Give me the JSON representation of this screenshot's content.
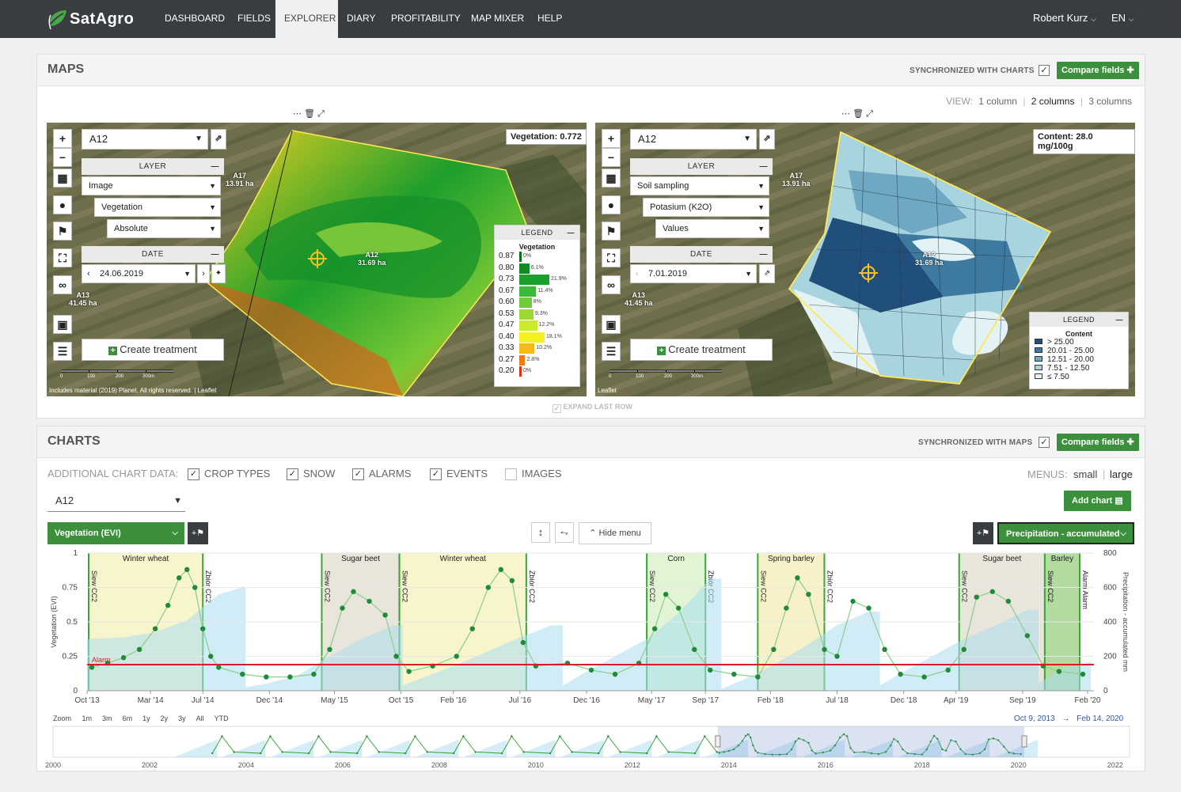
{
  "nav": {
    "brand": "SatAgro",
    "items": [
      {
        "label": "DASHBOARD",
        "active": false
      },
      {
        "label": "FIELDS",
        "active": false
      },
      {
        "label": "EXPLORER",
        "active": true
      },
      {
        "label": "DIARY",
        "active": false
      },
      {
        "label": "PROFITABILITY",
        "active": false
      },
      {
        "label": "MAP MIXER",
        "active": false
      },
      {
        "label": "HELP",
        "active": false
      }
    ],
    "user": "Robert Kurz",
    "language": "EN"
  },
  "maps": {
    "title": "MAPS",
    "sync_label": "SYNCHRONIZED WITH CHARTS",
    "compare_label": "Compare fields",
    "view_label": "VIEW:",
    "view_options": [
      "1 column",
      "2 columns",
      "3 columns"
    ],
    "view_selected": "2 columns",
    "expand_label": "EXPAND LAST ROW",
    "left": {
      "field": "A12",
      "layer_head": "LAYER",
      "layer": "Image",
      "sublayer": "Vegetation",
      "mode": "Absolute",
      "date_head": "DATE",
      "date": "24.06.2019",
      "create": "Create treatment",
      "value_box": "Vegetation: 0.772",
      "labels": [
        {
          "name": "A17",
          "area": "13.91 ha"
        },
        {
          "name": "A12",
          "area": "31.69 ha"
        },
        {
          "name": "A13",
          "area": "41.45 ha"
        }
      ],
      "legend_head": "LEGEND",
      "legend_title": "Vegetation",
      "legend_rows": [
        {
          "value": "0.87",
          "pct": "0%",
          "share": 0,
          "color": "#0a6e1c"
        },
        {
          "value": "0.80",
          "pct": "6.1%",
          "share": 6.1,
          "color": "#118a24"
        },
        {
          "value": "0.73",
          "pct": "21.9%",
          "share": 21.9,
          "color": "#1aa02c"
        },
        {
          "value": "0.67",
          "pct": "11.4%",
          "share": 11.4,
          "color": "#3cb83a"
        },
        {
          "value": "0.60",
          "pct": "8%",
          "share": 8,
          "color": "#6ccc3a"
        },
        {
          "value": "0.53",
          "pct": "9.3%",
          "share": 9.3,
          "color": "#9ed832"
        },
        {
          "value": "0.47",
          "pct": "12.2%",
          "share": 12.2,
          "color": "#ccea28"
        },
        {
          "value": "0.40",
          "pct": "18.1%",
          "share": 18.1,
          "color": "#f6f01e"
        },
        {
          "value": "0.33",
          "pct": "10.2%",
          "share": 10.2,
          "color": "#f6b81c"
        },
        {
          "value": "0.27",
          "pct": "2.8%",
          "share": 2.8,
          "color": "#ee7a18"
        },
        {
          "value": "0.20",
          "pct": "0%",
          "share": 0,
          "color": "#de3014"
        }
      ],
      "scale": [
        "0",
        "100",
        "200",
        "300m"
      ],
      "attribution": "Includes material (2019) Planet. All rights reserved. | Leaflet"
    },
    "right": {
      "field": "A12",
      "layer_head": "LAYER",
      "layer": "Soil sampling",
      "sublayer": "Potasium (K2O)",
      "mode": "Values",
      "date_head": "DATE",
      "date": "7.01.2019",
      "create": "Create treatment",
      "value_box": "Content: 28.0 mg/100g",
      "labels": [
        {
          "name": "A17",
          "area": "13.91 ha"
        },
        {
          "name": "A12",
          "area": "31.69 ha"
        },
        {
          "name": "A13",
          "area": "41.45 ha"
        }
      ],
      "legend_head": "LEGEND",
      "legend_title": "Content",
      "legend_rows": [
        {
          "value": "> 25.00",
          "color": "#1f4f7a"
        },
        {
          "value": "20.01 - 25.00",
          "color": "#3e7aa0"
        },
        {
          "value": "12.51 - 20.00",
          "color": "#6ea8c2"
        },
        {
          "value": "7.51 - 12.50",
          "color": "#a8d4df"
        },
        {
          "value": "≤ 7.50",
          "color": "#e3f3f5"
        }
      ],
      "scale": [
        "0",
        "100",
        "200",
        "300m"
      ],
      "attribution": "Leaflet"
    }
  },
  "charts": {
    "title": "CHARTS",
    "sync_label": "SYNCHRONIZED WITH MAPS",
    "compare_label": "Compare fields",
    "additional_label": "ADDITIONAL CHART DATA:",
    "options": [
      {
        "label": "CROP TYPES",
        "checked": true
      },
      {
        "label": "SNOW",
        "checked": true
      },
      {
        "label": "ALARMS",
        "checked": true
      },
      {
        "label": "EVENTS",
        "checked": true
      },
      {
        "label": "IMAGES",
        "checked": false
      }
    ],
    "menus_label": "MENUS:",
    "menus_small": "small",
    "menus_large": "large",
    "field": "A12",
    "add_chart": "Add chart",
    "left_series": "Vegetation (EVI)",
    "right_series": "Precipitation - accumulated",
    "hide_menu": "Hide menu",
    "zoom_label": "Zoom",
    "zoom_options": [
      "1m",
      "3m",
      "6m",
      "1y",
      "2y",
      "3y",
      "All",
      "YTD"
    ],
    "range_from": "Oct 9, 2013",
    "range_arrow": "→",
    "range_to": "Feb 14, 2020"
  },
  "chart_data": {
    "type": "line",
    "ylabel": "Vegetation (EVI)",
    "y2label": "Precipitation - accumulated mm",
    "ylim": [
      0,
      1
    ],
    "y2lim": [
      0,
      800
    ],
    "yticks": [
      "0",
      "0.25",
      "0.5",
      "0.75",
      "1"
    ],
    "y2ticks": [
      "0",
      "200",
      "400",
      "600",
      "800"
    ],
    "xticks": [
      {
        "label": "Oct '13",
        "t": 2013.77
      },
      {
        "label": "Mar '14",
        "t": 2014.17
      },
      {
        "label": "Jul '14",
        "t": 2014.5
      },
      {
        "label": "Dec '14",
        "t": 2014.92
      },
      {
        "label": "May '15",
        "t": 2015.33
      },
      {
        "label": "Oct '15",
        "t": 2015.75
      },
      {
        "label": "Feb '16",
        "t": 2016.08
      },
      {
        "label": "Jul '16",
        "t": 2016.5
      },
      {
        "label": "Dec '16",
        "t": 2016.92
      },
      {
        "label": "May '17",
        "t": 2017.33
      },
      {
        "label": "Sep '17",
        "t": 2017.67
      },
      {
        "label": "Feb '18",
        "t": 2018.08
      },
      {
        "label": "Jul '18",
        "t": 2018.5
      },
      {
        "label": "Dec '18",
        "t": 2018.92
      },
      {
        "label": "Apr '19",
        "t": 2019.25
      },
      {
        "label": "Sep '19",
        "t": 2019.67
      },
      {
        "label": "Feb '20",
        "t": 2020.08
      }
    ],
    "xlim": [
      2013.77,
      2020.12
    ],
    "alarm": {
      "label": "Alarm",
      "value": 0.19
    },
    "crops": [
      {
        "name": "Winter wheat",
        "from": 2013.78,
        "to": 2014.5,
        "color": "#f7f3c4",
        "sow": "Siew CC2",
        "harvest": "Zbiór CC2"
      },
      {
        "name": "Sugar beet",
        "from": 2015.25,
        "to": 2015.74,
        "color": "#e4e1d4",
        "sow": "Siew CC2",
        "harvest": "Zbiór CC2"
      },
      {
        "name": "Winter wheat",
        "from": 2015.74,
        "to": 2016.54,
        "color": "#f7f3c4",
        "sow": "Siew CC2",
        "harvest": "Zbiór CC2"
      },
      {
        "name": "Corn",
        "from": 2017.3,
        "to": 2017.67,
        "color": "#dcf3cc",
        "sow": "Siew CC2",
        "harvest": "Zbiór CC2"
      },
      {
        "name": "Spring barley",
        "from": 2018.0,
        "to": 2018.42,
        "color": "#f5eec0",
        "sow": "Siew CC2",
        "harvest": "Zbiór CC2"
      },
      {
        "name": "Sugar beet",
        "from": 2019.27,
        "to": 2019.81,
        "color": "#e4e1d4",
        "sow": "Siew CC2",
        "harvest": "Zbiór CC2"
      },
      {
        "name": "Barley",
        "from": 2019.81,
        "to": 2020.03,
        "color": "#a6d58f",
        "sow": "Siew CC2",
        "harvest": "Alarm Alarm"
      }
    ],
    "evi_series": [
      [
        2013.8,
        0.17
      ],
      [
        2013.9,
        0.2
      ],
      [
        2014.0,
        0.24
      ],
      [
        2014.1,
        0.3
      ],
      [
        2014.2,
        0.45
      ],
      [
        2014.28,
        0.62
      ],
      [
        2014.35,
        0.82
      ],
      [
        2014.4,
        0.88
      ],
      [
        2014.45,
        0.75
      ],
      [
        2014.5,
        0.45
      ],
      [
        2014.55,
        0.25
      ],
      [
        2014.6,
        0.17
      ],
      [
        2014.75,
        0.12
      ],
      [
        2014.9,
        0.1
      ],
      [
        2015.05,
        0.1
      ],
      [
        2015.2,
        0.12
      ],
      [
        2015.3,
        0.3
      ],
      [
        2015.38,
        0.6
      ],
      [
        2015.45,
        0.72
      ],
      [
        2015.55,
        0.65
      ],
      [
        2015.65,
        0.55
      ],
      [
        2015.72,
        0.25
      ],
      [
        2015.8,
        0.14
      ],
      [
        2015.95,
        0.18
      ],
      [
        2016.1,
        0.25
      ],
      [
        2016.2,
        0.45
      ],
      [
        2016.3,
        0.75
      ],
      [
        2016.38,
        0.88
      ],
      [
        2016.45,
        0.8
      ],
      [
        2016.52,
        0.35
      ],
      [
        2016.6,
        0.18
      ],
      [
        2016.8,
        0.2
      ],
      [
        2016.95,
        0.15
      ],
      [
        2017.1,
        0.12
      ],
      [
        2017.25,
        0.2
      ],
      [
        2017.35,
        0.45
      ],
      [
        2017.42,
        0.7
      ],
      [
        2017.5,
        0.6
      ],
      [
        2017.6,
        0.3
      ],
      [
        2017.7,
        0.15
      ],
      [
        2017.85,
        0.12
      ],
      [
        2018.0,
        0.1
      ],
      [
        2018.1,
        0.3
      ],
      [
        2018.18,
        0.6
      ],
      [
        2018.25,
        0.82
      ],
      [
        2018.32,
        0.7
      ],
      [
        2018.42,
        0.3
      ],
      [
        2018.5,
        0.25
      ],
      [
        2018.6,
        0.65
      ],
      [
        2018.7,
        0.6
      ],
      [
        2018.8,
        0.3
      ],
      [
        2018.9,
        0.12
      ],
      [
        2019.05,
        0.1
      ],
      [
        2019.2,
        0.15
      ],
      [
        2019.3,
        0.3
      ],
      [
        2019.38,
        0.68
      ],
      [
        2019.48,
        0.72
      ],
      [
        2019.58,
        0.65
      ],
      [
        2019.7,
        0.4
      ],
      [
        2019.8,
        0.18
      ],
      [
        2019.9,
        0.14
      ],
      [
        2020.05,
        0.12
      ]
    ],
    "precip_series": [
      [
        2013.77,
        300
      ],
      [
        2014.0,
        310
      ],
      [
        2014.2,
        340
      ],
      [
        2014.4,
        410
      ],
      [
        2014.6,
        560
      ],
      [
        2014.75,
        600
      ],
      [
        2014.77,
        20
      ],
      [
        2014.9,
        40
      ],
      [
        2015.1,
        90
      ],
      [
        2015.3,
        200
      ],
      [
        2015.5,
        300
      ],
      [
        2015.7,
        380
      ],
      [
        2015.76,
        30
      ],
      [
        2015.9,
        80
      ],
      [
        2016.1,
        150
      ],
      [
        2016.3,
        230
      ],
      [
        2016.5,
        310
      ],
      [
        2016.7,
        380
      ],
      [
        2016.77,
        30
      ],
      [
        2016.9,
        100
      ],
      [
        2017.1,
        200
      ],
      [
        2017.3,
        300
      ],
      [
        2017.5,
        450
      ],
      [
        2017.7,
        650
      ],
      [
        2017.77,
        10
      ],
      [
        2017.9,
        60
      ],
      [
        2018.1,
        150
      ],
      [
        2018.3,
        260
      ],
      [
        2018.5,
        380
      ],
      [
        2018.7,
        460
      ],
      [
        2018.77,
        30
      ],
      [
        2018.9,
        100
      ],
      [
        2019.1,
        200
      ],
      [
        2019.3,
        300
      ],
      [
        2019.5,
        380
      ],
      [
        2019.7,
        470
      ],
      [
        2019.77,
        40
      ],
      [
        2019.9,
        120
      ],
      [
        2020.1,
        170
      ]
    ],
    "navigator_years": [
      "2000",
      "2002",
      "2004",
      "2006",
      "2008",
      "2010",
      "2012",
      "2014",
      "2016",
      "2018",
      "2020",
      "2022"
    ],
    "navigator_range": [
      2013.77,
      2020.12
    ],
    "navigator_xlim": [
      2000,
      2022.3
    ]
  }
}
